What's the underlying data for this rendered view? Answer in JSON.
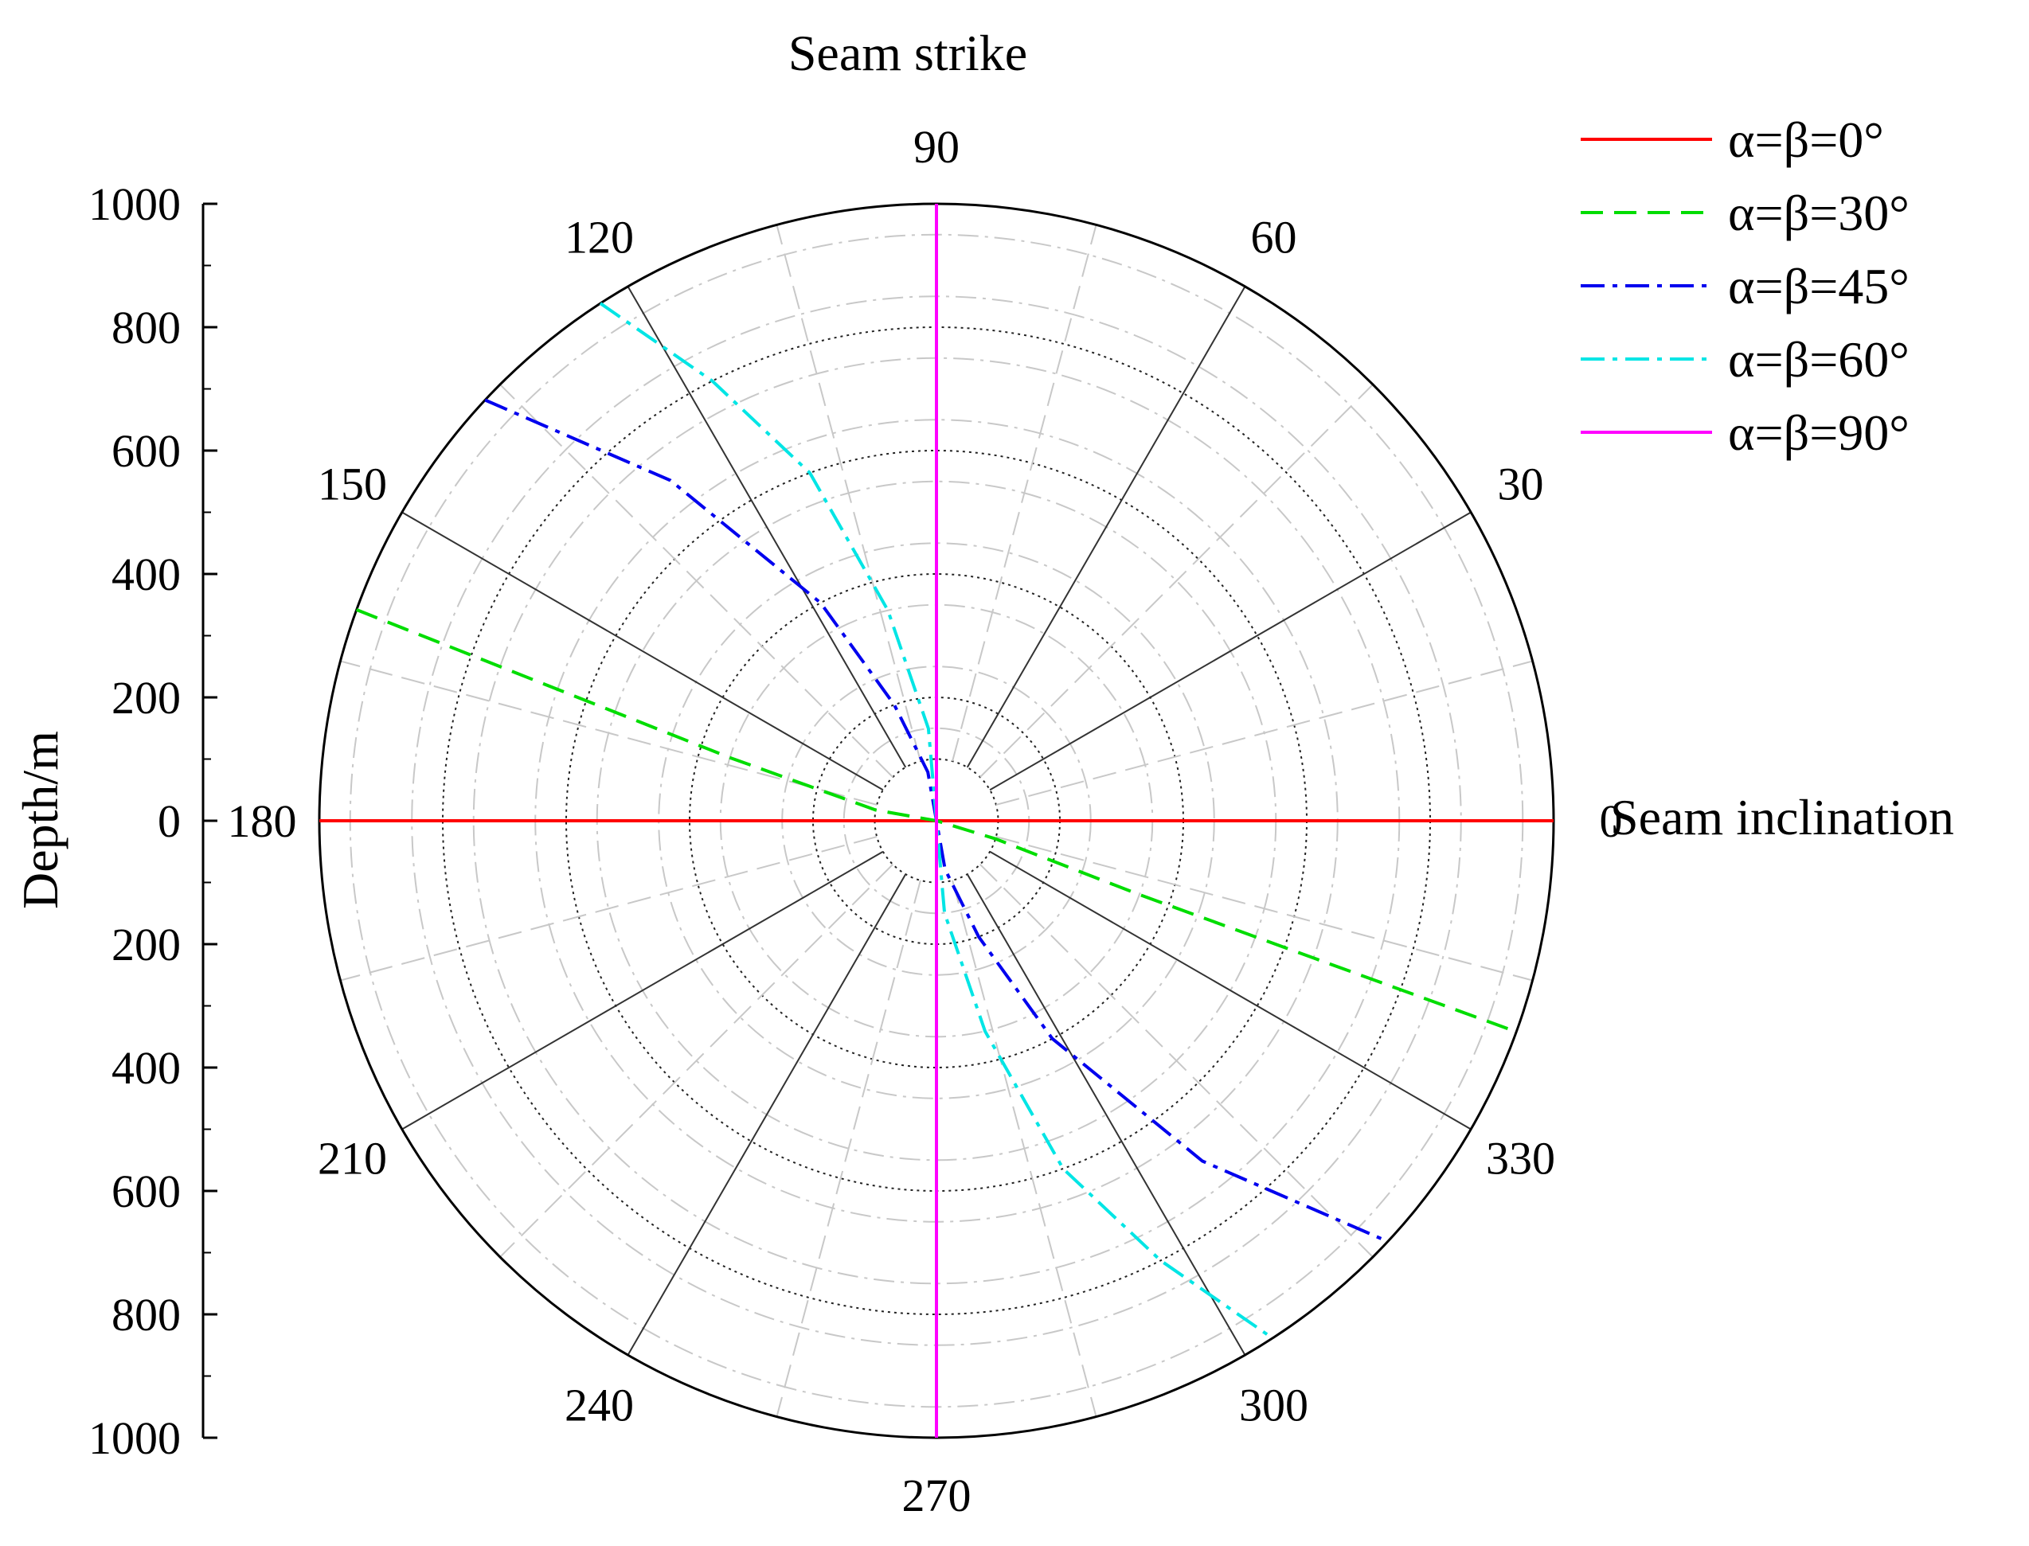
{
  "chart_data": {
    "type": "polar-line",
    "title": "Seam strike",
    "angle_axis_label": "Seam inclination",
    "radial_axis_label": "Depth/m",
    "radial_range": [
      0,
      1000
    ],
    "radial_ticks": [
      "1000",
      "800",
      "600",
      "400",
      "200",
      "0",
      "200",
      "400",
      "600",
      "800",
      "1000"
    ],
    "angle_tick_labels": [
      "0",
      "30",
      "60",
      "90",
      "120",
      "150",
      "180",
      "210",
      "240",
      "270",
      "300",
      "330"
    ],
    "inner_hole_radius": 100,
    "legend_placement": "top-right",
    "colors": {
      "s0": "#ff0000",
      "s30": "#00dd00",
      "s45": "#0000ee",
      "s60": "#00e5e5",
      "s90": "#ff00ff"
    },
    "series": [
      {
        "name": "α=β=0°",
        "dash": "solid",
        "color": "#ff0000",
        "points": [
          [
            0,
            1000
          ],
          [
            0,
            0
          ],
          [
            180,
            1000
          ]
        ]
      },
      {
        "name": "α=β=30°",
        "dash": "dashed",
        "color": "#00dd00",
        "points": [
          [
            160,
            1000
          ],
          [
            163,
            350
          ],
          [
            170,
            100
          ],
          [
            180,
            0
          ],
          [
            343,
            100
          ],
          [
            340,
            350
          ],
          [
            340,
            1000
          ]
        ]
      },
      {
        "name": "α=β=45°",
        "dash": "dash-dot",
        "color": "#0000ee",
        "points": [
          [
            137,
            1000
          ],
          [
            128,
            700
          ],
          [
            118,
            400
          ],
          [
            110,
            200
          ],
          [
            100,
            80
          ],
          [
            90,
            0
          ],
          [
            280,
            80
          ],
          [
            290,
            200
          ],
          [
            298,
            400
          ],
          [
            308,
            700
          ],
          [
            317,
            1000
          ]
        ]
      },
      {
        "name": "α=β=60°",
        "dash": "dash-dot",
        "color": "#00e5e5",
        "points": [
          [
            123,
            1000
          ],
          [
            117,
            800
          ],
          [
            110,
            600
          ],
          [
            103,
            350
          ],
          [
            95,
            150
          ],
          [
            90,
            0
          ],
          [
            275,
            150
          ],
          [
            283,
            350
          ],
          [
            290,
            600
          ],
          [
            297,
            800
          ],
          [
            303,
            1000
          ]
        ]
      },
      {
        "name": "α=β=90°",
        "dash": "solid",
        "color": "#ff00ff",
        "points": [
          [
            90,
            1000
          ],
          [
            90,
            0
          ],
          [
            270,
            1000
          ]
        ]
      }
    ]
  }
}
